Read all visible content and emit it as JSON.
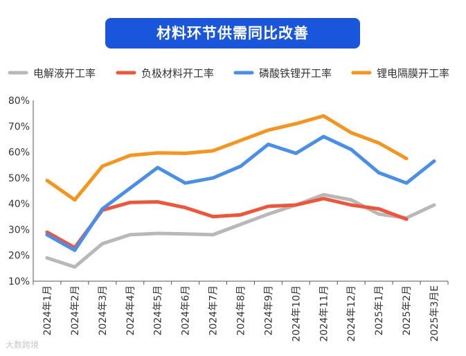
{
  "chart_data": {
    "type": "line",
    "title": "材料环节供需同比改善",
    "categories": [
      "2024年1月",
      "2024年2月",
      "2024年3月",
      "2024年4月",
      "2024年5月",
      "2024年6月",
      "2024年7月",
      "2024年8月",
      "2024年9月",
      "2024年10月",
      "2024年11月",
      "2024年12月",
      "2025年1月",
      "2025年2月",
      "2025年3月E"
    ],
    "ylim": [
      10,
      80
    ],
    "yticks": [
      "10%",
      "20%",
      "30%",
      "40%",
      "50%",
      "60%",
      "70%",
      "80%"
    ],
    "xlabel": "",
    "ylabel": "",
    "grid": false,
    "legend_position": "top",
    "series": [
      {
        "name": "电解液开工率",
        "color": "#b8b8b8",
        "values": [
          19,
          15.5,
          24.5,
          28,
          28.5,
          28.3,
          28,
          32,
          36,
          39.5,
          43.5,
          41.5,
          36,
          34.5,
          39.5
        ]
      },
      {
        "name": "负极材料开工率",
        "color": "#f0553a",
        "values": [
          29,
          23,
          37.5,
          40.5,
          40.7,
          38.5,
          35,
          35.7,
          39,
          39.5,
          42,
          39.5,
          38,
          34,
          null
        ]
      },
      {
        "name": "磷酸铁锂开工率",
        "color": "#4a8fe7",
        "values": [
          28,
          22,
          38,
          46,
          54,
          48,
          50,
          54.5,
          63,
          59.5,
          66,
          61,
          52,
          48,
          56.5
        ]
      },
      {
        "name": "锂电隔膜开工率",
        "color": "#f7941d",
        "values": [
          49,
          41.5,
          54.5,
          58.7,
          59.7,
          59.5,
          60.5,
          64.5,
          68.5,
          71,
          74,
          67.5,
          63.5,
          57.5,
          null
        ]
      }
    ]
  },
  "watermark": "大数跨境"
}
